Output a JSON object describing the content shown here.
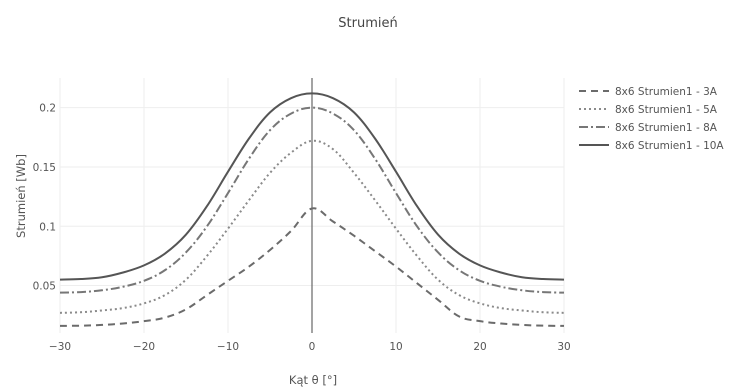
{
  "chart_data": {
    "type": "line",
    "title": "Strumień",
    "xlabel": "Kąt θ [°]",
    "ylabel": "Strumień [Wb]",
    "xlim": [
      -30,
      30
    ],
    "ylim": [
      0.01,
      0.225
    ],
    "xticks": [
      -30,
      -20,
      -10,
      0,
      10,
      20,
      30
    ],
    "xtick_labels": [
      "−30",
      "−20",
      "−10",
      "0",
      "10",
      "20",
      "30"
    ],
    "yticks": [
      0.05,
      0.1,
      0.15,
      0.2
    ],
    "ytick_labels": [
      "0.05",
      "0.1",
      "0.15",
      "0.2"
    ],
    "grid": true,
    "legend_position": "top-right",
    "x": [
      -30,
      -27.5,
      -25,
      -22.5,
      -20,
      -17.5,
      -15,
      -12.5,
      -10,
      -7.5,
      -5,
      -2.5,
      0,
      2.5,
      5,
      7.5,
      10,
      12.5,
      15,
      17.5,
      20,
      22.5,
      25,
      27.5,
      30
    ],
    "series": [
      {
        "name": "8x6 Strumien1 - 3A",
        "color": "#6b6b6b",
        "dash": "7,5",
        "values": [
          0.016,
          0.0162,
          0.0168,
          0.018,
          0.02,
          0.023,
          0.03,
          0.042,
          0.054,
          0.066,
          0.08,
          0.096,
          0.115,
          0.104,
          0.092,
          0.079,
          0.066,
          0.052,
          0.038,
          0.024,
          0.02,
          0.018,
          0.0168,
          0.0162,
          0.016
        ]
      },
      {
        "name": "8x6 Strumien1 - 5A",
        "color": "#8a8a8a",
        "dash": "2,3",
        "values": [
          0.027,
          0.0275,
          0.029,
          0.031,
          0.035,
          0.042,
          0.055,
          0.075,
          0.098,
          0.122,
          0.145,
          0.162,
          0.172,
          0.165,
          0.145,
          0.122,
          0.098,
          0.075,
          0.055,
          0.042,
          0.035,
          0.031,
          0.029,
          0.0275,
          0.027
        ]
      },
      {
        "name": "8x6 Strumien1 - 8A",
        "color": "#777777",
        "dash": "9,3,2,3",
        "values": [
          0.044,
          0.0445,
          0.046,
          0.049,
          0.054,
          0.063,
          0.078,
          0.1,
          0.128,
          0.157,
          0.181,
          0.195,
          0.2,
          0.195,
          0.181,
          0.157,
          0.128,
          0.1,
          0.078,
          0.063,
          0.054,
          0.049,
          0.046,
          0.0445,
          0.044
        ]
      },
      {
        "name": "8x6 Strumien1 - 10A",
        "color": "#555555",
        "dash": "",
        "values": [
          0.055,
          0.0555,
          0.057,
          0.061,
          0.067,
          0.077,
          0.093,
          0.117,
          0.146,
          0.174,
          0.196,
          0.208,
          0.212,
          0.208,
          0.196,
          0.174,
          0.146,
          0.117,
          0.093,
          0.077,
          0.067,
          0.061,
          0.057,
          0.0555,
          0.055
        ]
      }
    ]
  }
}
